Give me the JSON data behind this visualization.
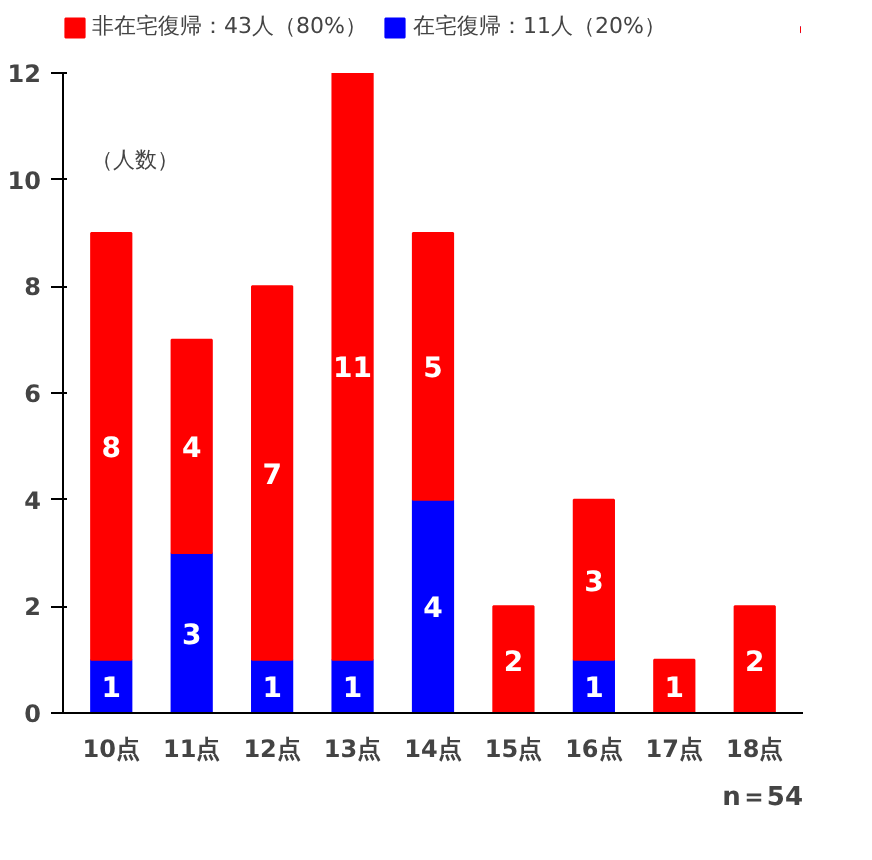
{
  "chart_data": {
    "type": "bar",
    "stacked": true,
    "categories": [
      "10点",
      "11点",
      "12点",
      "13点",
      "14点",
      "15点",
      "16点",
      "17点",
      "18点"
    ],
    "series": [
      {
        "name": "在宅復帰：11人（20%）",
        "color": "#0000ff",
        "values": [
          1,
          3,
          1,
          1,
          4,
          0,
          1,
          0,
          0
        ],
        "value_labels": [
          "1",
          "3",
          "1",
          "1",
          "4",
          null,
          "1",
          null,
          null
        ]
      },
      {
        "name": "非在宅復帰：43人（80%）",
        "color": "#ff0000",
        "values": [
          8,
          4,
          7,
          11,
          5,
          2,
          3,
          1,
          2
        ],
        "value_labels": [
          "8",
          "4",
          "7",
          "11",
          "5",
          "2",
          "3",
          "1",
          "2"
        ]
      }
    ],
    "ylim": [
      0,
      12
    ],
    "yticks": [
      0,
      2,
      4,
      6,
      8,
      10,
      12
    ],
    "grid": false,
    "legend": "top",
    "annotations": [
      "（人数）",
      "n＝54"
    ]
  }
}
